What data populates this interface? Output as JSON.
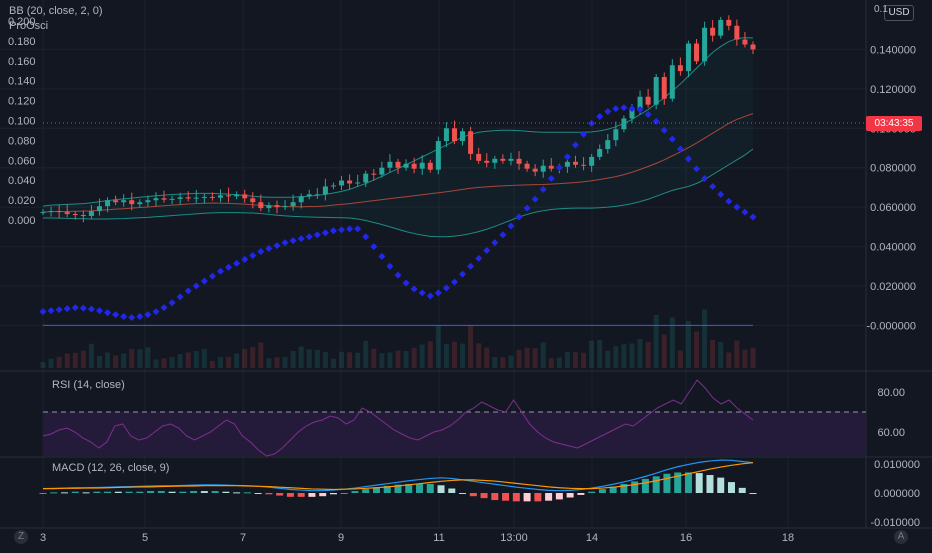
{
  "legends": {
    "main_line1": "BB (20, close, 2, 0)",
    "main_line2": "ProOsci",
    "rsi": "RSI (14, close)",
    "macd": "MACD (12, 26, close, 9)"
  },
  "price_scale": {
    "currency_label": "USD",
    "countdown_label": "03:43:35",
    "last_price_top_partial": "0.1"
  },
  "corners": {
    "left_button": "Z",
    "right_button": "A"
  },
  "colors": {
    "background": "#131722",
    "up": "#26a69a",
    "down": "#ef5350",
    "sar": "#2128e6",
    "bb_band": "#1e8c86",
    "bb_basis": "#a8463b",
    "rsi_line": "#7e2f8d",
    "rsi_fill": "#241b3a",
    "macd_line": "#2196f3",
    "signal_line": "#ff9800",
    "zero_line": "#2962ff"
  },
  "chart_data": [
    {
      "name": "price",
      "type": "candlestick",
      "x_ticks": [
        "3",
        "5",
        "7",
        "9",
        "11",
        "13:00",
        "14",
        "16",
        "18"
      ],
      "left_axis_ticks": [
        "0.200",
        "0.180",
        "0.160",
        "0.140",
        "0.120",
        "0.100",
        "0.080",
        "0.060",
        "0.040",
        "0.020",
        "0.000"
      ],
      "right_axis_ticks": [
        "0.140000",
        "0.120000",
        "0.100000",
        "0.080000",
        "0.060000",
        "0.040000",
        "0.020000",
        "-0.000000"
      ],
      "right_axis_range": [
        -0.015,
        0.16
      ],
      "close": [
        0.0575,
        0.058,
        0.0575,
        0.0565,
        0.056,
        0.0555,
        0.058,
        0.0605,
        0.0635,
        0.0625,
        0.0635,
        0.0615,
        0.0625,
        0.0635,
        0.0645,
        0.0638,
        0.0642,
        0.065,
        0.0644,
        0.0648,
        0.0652,
        0.0648,
        0.066,
        0.0655,
        0.0665,
        0.0645,
        0.0625,
        0.0595,
        0.061,
        0.06,
        0.0605,
        0.0625,
        0.0655,
        0.0665,
        0.0665,
        0.0705,
        0.071,
        0.0735,
        0.072,
        0.0725,
        0.077,
        0.0765,
        0.08,
        0.083,
        0.08,
        0.082,
        0.0795,
        0.0825,
        0.079,
        0.0935,
        0.1,
        0.0935,
        0.0985,
        0.087,
        0.0835,
        0.0825,
        0.0845,
        0.0835,
        0.0845,
        0.082,
        0.0795,
        0.078,
        0.081,
        0.0795,
        0.0805,
        0.083,
        0.0815,
        0.081,
        0.0855,
        0.0895,
        0.094,
        0.0995,
        0.105,
        0.11,
        0.116,
        0.112,
        0.126,
        0.115,
        0.132,
        0.129,
        0.143,
        0.134,
        0.151,
        0.147,
        0.155,
        0.152,
        0.145,
        0.1425,
        0.14
      ],
      "bb_upper": [
        0.0605,
        0.061,
        0.0612,
        0.0614,
        0.0616,
        0.0618,
        0.0622,
        0.0628,
        0.0633,
        0.0638,
        0.0642,
        0.0646,
        0.065,
        0.0654,
        0.0658,
        0.0661,
        0.0664,
        0.0666,
        0.0668,
        0.067,
        0.067,
        0.067,
        0.0668,
        0.0666,
        0.0662,
        0.066,
        0.0655,
        0.0652,
        0.065,
        0.065,
        0.065,
        0.0651,
        0.0653,
        0.0656,
        0.066,
        0.0665,
        0.0672,
        0.068,
        0.069,
        0.0705,
        0.072,
        0.0738,
        0.0756,
        0.0776,
        0.0795,
        0.0815,
        0.0835,
        0.0855,
        0.0875,
        0.0895,
        0.0915,
        0.0935,
        0.0955,
        0.097,
        0.098,
        0.0985,
        0.0988,
        0.099,
        0.099,
        0.0988,
        0.0985,
        0.0982,
        0.098,
        0.098,
        0.098,
        0.098,
        0.098,
        0.098,
        0.0982,
        0.0987,
        0.0995,
        0.1008,
        0.1025,
        0.1045,
        0.107,
        0.1095,
        0.1125,
        0.1155,
        0.119,
        0.1225,
        0.1265,
        0.1305,
        0.1345,
        0.1385,
        0.1415,
        0.144,
        0.1455,
        0.146,
        0.1458
      ],
      "bb_lower": [
        0.0545,
        0.0545,
        0.0544,
        0.0543,
        0.0542,
        0.0541,
        0.054,
        0.054,
        0.054,
        0.0541,
        0.0542,
        0.0544,
        0.0546,
        0.0548,
        0.0551,
        0.0554,
        0.0557,
        0.056,
        0.0563,
        0.0566,
        0.0569,
        0.0571,
        0.0572,
        0.0572,
        0.0572,
        0.0571,
        0.057,
        0.0567,
        0.0563,
        0.0559,
        0.0556,
        0.0553,
        0.0551,
        0.055,
        0.0549,
        0.0548,
        0.0547,
        0.0546,
        0.0545,
        0.054,
        0.0532,
        0.0522,
        0.0512,
        0.05,
        0.0488,
        0.0476,
        0.0466,
        0.0458,
        0.0452,
        0.045,
        0.045,
        0.0453,
        0.0458,
        0.0466,
        0.0476,
        0.0488,
        0.0502,
        0.0518,
        0.0534,
        0.055,
        0.0563,
        0.0574,
        0.0582,
        0.0588,
        0.0592,
        0.0594,
        0.0595,
        0.0595,
        0.0595,
        0.0597,
        0.06,
        0.0604,
        0.061,
        0.0618,
        0.0628,
        0.064,
        0.0655,
        0.067,
        0.0685,
        0.0695,
        0.0705,
        0.072,
        0.074,
        0.0765,
        0.079,
        0.0815,
        0.084,
        0.0865,
        0.0895
      ],
      "bb_basis": [
        0.0575,
        0.0578,
        0.0578,
        0.0578,
        0.0579,
        0.058,
        0.0581,
        0.0584,
        0.0587,
        0.059,
        0.0592,
        0.0595,
        0.0598,
        0.0601,
        0.0604,
        0.0607,
        0.061,
        0.0613,
        0.0616,
        0.0618,
        0.062,
        0.0621,
        0.062,
        0.0619,
        0.0617,
        0.0615,
        0.0612,
        0.061,
        0.0607,
        0.0605,
        0.0603,
        0.0602,
        0.0602,
        0.0603,
        0.0604,
        0.0606,
        0.061,
        0.0614,
        0.0618,
        0.0623,
        0.0628,
        0.0633,
        0.0638,
        0.0643,
        0.0648,
        0.0653,
        0.0658,
        0.0663,
        0.0668,
        0.0673,
        0.0678,
        0.0684,
        0.069,
        0.0696,
        0.07,
        0.0703,
        0.0706,
        0.0708,
        0.071,
        0.0712,
        0.0713,
        0.0714,
        0.0715,
        0.0717,
        0.0719,
        0.0722,
        0.0725,
        0.0729,
        0.0734,
        0.074,
        0.0747,
        0.0755,
        0.0765,
        0.0777,
        0.0791,
        0.0806,
        0.0822,
        0.084,
        0.086,
        0.088,
        0.0902,
        0.0925,
        0.095,
        0.0975,
        0.1,
        0.1025,
        0.1045,
        0.106,
        0.1075
      ],
      "sar": [
        0.007,
        0.0075,
        0.008,
        0.0085,
        0.009,
        0.0088,
        0.0083,
        0.0075,
        0.0065,
        0.0055,
        0.0045,
        0.004,
        0.0045,
        0.0055,
        0.007,
        0.009,
        0.0115,
        0.0145,
        0.0175,
        0.02,
        0.0225,
        0.025,
        0.0275,
        0.0295,
        0.0315,
        0.0335,
        0.0355,
        0.0375,
        0.039,
        0.0405,
        0.042,
        0.043,
        0.044,
        0.045,
        0.046,
        0.047,
        0.048,
        0.0485,
        0.049,
        0.049,
        0.045,
        0.04,
        0.035,
        0.03,
        0.0255,
        0.0215,
        0.0185,
        0.0165,
        0.015,
        0.0165,
        0.019,
        0.022,
        0.026,
        0.03,
        0.034,
        0.038,
        0.042,
        0.046,
        0.0505,
        0.055,
        0.0595,
        0.064,
        0.069,
        0.0745,
        0.08,
        0.0855,
        0.0915,
        0.097,
        0.1025,
        0.106,
        0.1085,
        0.11,
        0.1105,
        0.11,
        0.1095,
        0.107,
        0.1035,
        0.099,
        0.0945,
        0.0895,
        0.0845,
        0.0795,
        0.0745,
        0.0705,
        0.0665,
        0.063,
        0.06,
        0.0575,
        0.055
      ]
    },
    {
      "name": "RSI",
      "type": "line",
      "y_ticks": [
        "80.00",
        "60.00"
      ],
      "y_range": [
        48,
        90
      ],
      "overbought_level": 70,
      "values": [
        58,
        59,
        61,
        62,
        60,
        57,
        55,
        52,
        55,
        63,
        64,
        58,
        56,
        57,
        60,
        63,
        64,
        62,
        58,
        56,
        58,
        60,
        63,
        66,
        64,
        58,
        55,
        51,
        48,
        49,
        52,
        56,
        60,
        63,
        65,
        66,
        68,
        67,
        64,
        66,
        72,
        70,
        67,
        64,
        61,
        59,
        57,
        56,
        58,
        60,
        61,
        63,
        66,
        70,
        72,
        75,
        73,
        71,
        70,
        76,
        70,
        64,
        60,
        57,
        55,
        54,
        53,
        52,
        54,
        56,
        58,
        60,
        62,
        64,
        63,
        66,
        69,
        72,
        74,
        76,
        74,
        80,
        86,
        82,
        77,
        74,
        76,
        72,
        69,
        66
      ]
    },
    {
      "name": "MACD",
      "type": "line",
      "y_ticks": [
        "0.010000",
        "0.000000",
        "-0.010000"
      ],
      "y_range": [
        -0.012,
        0.012
      ],
      "macd": [
        0.0015,
        0.0016,
        0.0017,
        0.0018,
        0.0018,
        0.0019,
        0.002,
        0.0021,
        0.0022,
        0.0023,
        0.0024,
        0.0025,
        0.0025,
        0.0026,
        0.0027,
        0.0028,
        0.0028,
        0.0027,
        0.0026,
        0.0025,
        0.0023,
        0.002,
        0.0016,
        0.0012,
        0.001,
        0.0008,
        0.0008,
        0.001,
        0.0013,
        0.0017,
        0.0022,
        0.0027,
        0.0032,
        0.0037,
        0.0042,
        0.0046,
        0.005,
        0.0052,
        0.005,
        0.0045,
        0.004,
        0.0035,
        0.003,
        0.0025,
        0.002,
        0.0016,
        0.0012,
        0.0009,
        0.0008,
        0.0009,
        0.0012,
        0.0017,
        0.0023,
        0.003,
        0.0038,
        0.0047,
        0.0057,
        0.0068,
        0.008,
        0.009,
        0.0098,
        0.0105,
        0.011,
        0.0113,
        0.0112,
        0.0108,
        0.0104
      ],
      "signal": [
        0.0015,
        0.0015,
        0.0016,
        0.0016,
        0.0017,
        0.0017,
        0.0018,
        0.0019,
        0.002,
        0.0021,
        0.0021,
        0.0022,
        0.0023,
        0.0024,
        0.0024,
        0.0025,
        0.0025,
        0.0025,
        0.0025,
        0.0024,
        0.0023,
        0.0022,
        0.002,
        0.0018,
        0.0016,
        0.0014,
        0.0013,
        0.0012,
        0.0013,
        0.0014,
        0.0016,
        0.0018,
        0.0021,
        0.0024,
        0.0028,
        0.0032,
        0.0036,
        0.004,
        0.0043,
        0.0045,
        0.0045,
        0.0043,
        0.0041,
        0.0037,
        0.0033,
        0.0029,
        0.0025,
        0.0021,
        0.0018,
        0.0016,
        0.0015,
        0.0015,
        0.0017,
        0.002,
        0.0024,
        0.0029,
        0.0035,
        0.0042,
        0.005,
        0.0058,
        0.0066,
        0.0074,
        0.0082,
        0.0089,
        0.0095,
        0.01,
        0.0104
      ]
    }
  ]
}
